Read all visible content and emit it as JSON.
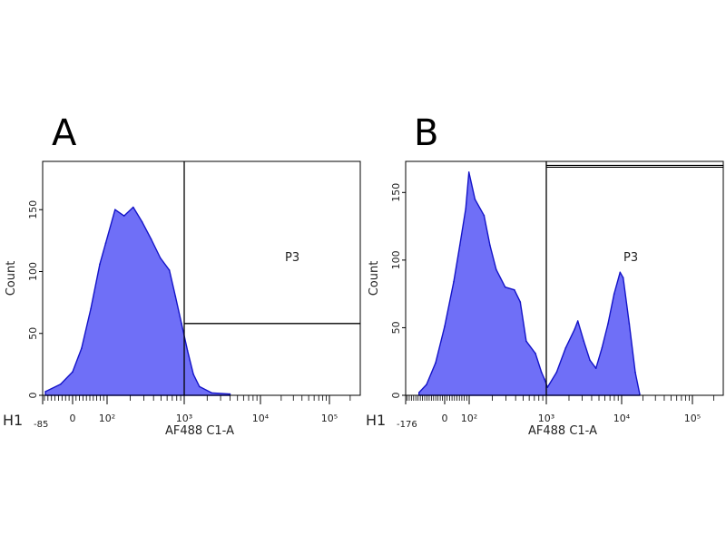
{
  "chart_data": [
    {
      "type": "area",
      "panel_label": "A",
      "histogram_name": "H1",
      "xlabel": "AF488 C1-A",
      "ylabel": "Count",
      "xscale": "biexponential",
      "xlim": [
        -85,
        250000
      ],
      "ylim": [
        0,
        189
      ],
      "x_tick_values": [
        0,
        100,
        1000,
        10000,
        100000
      ],
      "x_tick_labels": [
        "0",
        "10²",
        "10³",
        "10⁴",
        "10⁵"
      ],
      "x_min_label": "-85",
      "y_tick_values": [
        0,
        50,
        100,
        150
      ],
      "y_tick_labels": [
        "0",
        "50",
        "100",
        "150"
      ],
      "fill_color": "#6f6ff7",
      "line_color": "#1414c8",
      "gate": {
        "name": "P3",
        "x_from": 1000,
        "count_from": 58
      },
      "x": [
        -77,
        -34,
        0,
        26,
        53,
        79,
        96,
        127,
        166,
        218,
        285,
        374,
        490,
        643,
        769,
        922,
        1106,
        1318,
        1585,
        2290,
        3980
      ],
      "counts": [
        3,
        9,
        19,
        38,
        70,
        106,
        123,
        150,
        145,
        152,
        140,
        126,
        111,
        101,
        80,
        58,
        36,
        17,
        7,
        2,
        1
      ]
    },
    {
      "type": "area",
      "panel_label": "B",
      "histogram_name": "H1",
      "xlabel": "AF488 C1-A",
      "ylabel": "Count",
      "xscale": "biexponential",
      "xlim": [
        -176,
        250000
      ],
      "ylim": [
        0,
        173
      ],
      "x_tick_values": [
        0,
        100,
        1000,
        10000,
        100000
      ],
      "x_tick_labels": [
        "0",
        "10²",
        "10³",
        "10⁴",
        "10⁵"
      ],
      "x_min_label": "-176",
      "y_tick_values": [
        0,
        50,
        100,
        150
      ],
      "y_tick_labels": [
        "0",
        "50",
        "100",
        "150"
      ],
      "fill_color": "#6f6ff7",
      "line_color": "#1414c8",
      "gate": {
        "name": "P3",
        "x_from": 1000,
        "count_from": 170
      },
      "x": [
        -116,
        -82,
        -41,
        0,
        37,
        62,
        86,
        99,
        119,
        156,
        186,
        224,
        293,
        385,
        460,
        550,
        723,
        866,
        946,
        1037,
        1368,
        1806,
        2384,
        2616,
        3148,
        3784,
        4557,
        5483,
        6600,
        7940,
        9550,
        10500,
        12800,
        15560,
        18000
      ],
      "counts": [
        2,
        8,
        24,
        51,
        84,
        111,
        138,
        165,
        145,
        133,
        111,
        93,
        80,
        78,
        69,
        40,
        31,
        17,
        12,
        6,
        17,
        35,
        49,
        55,
        40,
        26,
        20,
        35,
        53,
        75,
        91,
        87,
        53,
        17,
        1
      ]
    }
  ]
}
